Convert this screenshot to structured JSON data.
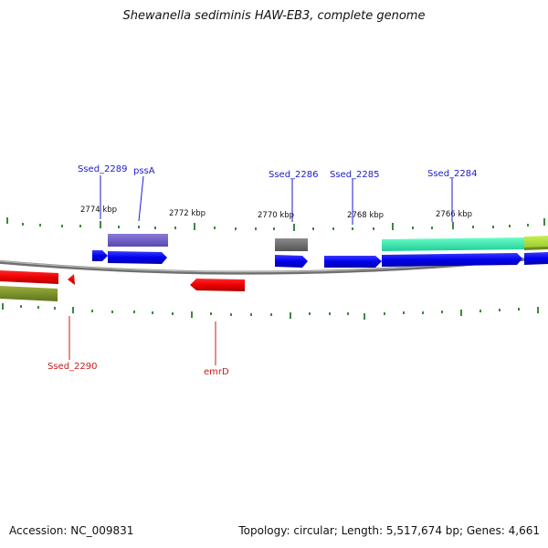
{
  "title": "Shewanella sediminis HAW-EB3, complete genome",
  "footer": {
    "accession": "Accession: NC_009831",
    "summary": "Topology: circular; Length: 5,517,674 bp; Genes: 4,661"
  },
  "colors": {
    "forward_label": "#1a1acc",
    "reverse_label": "#cc1a1a",
    "tick": "#2a7a2a",
    "backbone": "#808080"
  },
  "scale_ticks": [
    "2774 kbp",
    "2772 kbp",
    "2770 kbp",
    "2768 kbp",
    "2766 kbp"
  ],
  "gene_labels": [
    {
      "name": "Ssed_2289",
      "strand": "forward"
    },
    {
      "name": "pssA",
      "strand": "forward"
    },
    {
      "name": "Ssed_2286",
      "strand": "forward"
    },
    {
      "name": "Ssed_2285",
      "strand": "forward"
    },
    {
      "name": "Ssed_2284",
      "strand": "forward"
    },
    {
      "name": "Ssed_2290",
      "strand": "reverse"
    },
    {
      "name": "emrD",
      "strand": "reverse"
    }
  ]
}
